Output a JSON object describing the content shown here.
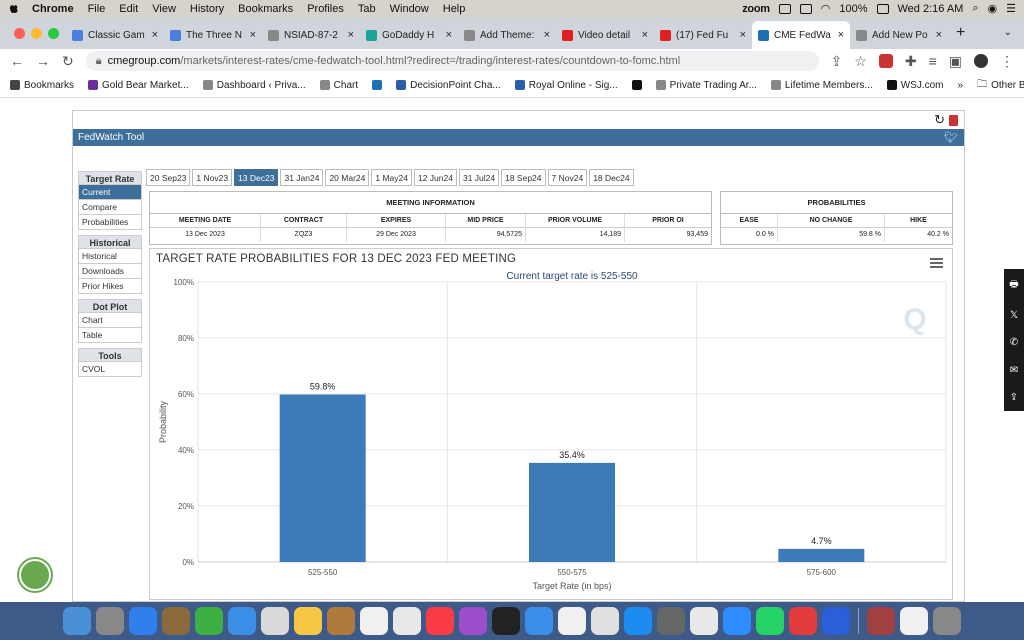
{
  "menubar": {
    "app": "Chrome",
    "items": [
      "File",
      "Edit",
      "View",
      "History",
      "Bookmarks",
      "Profiles",
      "Tab",
      "Window",
      "Help"
    ],
    "zoom_logo": "zoom",
    "battery": "100%",
    "datetime": "Wed 2:16 AM"
  },
  "browser": {
    "tabs": [
      {
        "label": "Classic Gam",
        "fav_color": "#4a7fe0"
      },
      {
        "label": "The Three N",
        "fav_color": "#4a7fe0"
      },
      {
        "label": "NSIAD-87-2",
        "fav_color": "#888888"
      },
      {
        "label": "GoDaddy H",
        "fav_color": "#1ba39c"
      },
      {
        "label": "Add Theme:",
        "fav_color": "#888888"
      },
      {
        "label": "Video detail",
        "fav_color": "#e02020"
      },
      {
        "label": "(17) Fed Fu",
        "fav_color": "#e02020"
      },
      {
        "label": "CME FedWa",
        "fav_color": "#1f6fb5",
        "active": true
      },
      {
        "label": "Add New Po",
        "fav_color": "#888888"
      }
    ],
    "tab_close": "×",
    "new_tab": "+",
    "url_host": "cmegroup.com",
    "url_path": "/markets/interest-rates/cme-fedwatch-tool.html?redirect=/trading/interest-rates/countdown-to-fomc.html",
    "bookmarks": [
      {
        "label": "Bookmarks",
        "color": "#444444"
      },
      {
        "label": "Gold Bear Market...",
        "color": "#6b2fa0"
      },
      {
        "label": "Dashboard ‹ Priva...",
        "color": "#888888"
      },
      {
        "label": "Chart",
        "color": "#888888"
      },
      {
        "label": "",
        "color": "#1f6fb5"
      },
      {
        "label": "DecisionPoint Cha...",
        "color": "#2a5ea8"
      },
      {
        "label": "Royal Online - Sig...",
        "color": "#2a5ea8"
      },
      {
        "label": "",
        "color": "#111111"
      },
      {
        "label": "Private Trading Ar...",
        "color": "#888888"
      },
      {
        "label": "Lifetime Members...",
        "color": "#888888"
      },
      {
        "label": "WSJ.com",
        "color": "#111111"
      }
    ],
    "bookmarks_more": "»",
    "other_bookmarks": "Other Bookmarks"
  },
  "fedwatch": {
    "title": "FedWatch Tool",
    "sidebar": [
      {
        "heading": "Target Rate",
        "items": [
          {
            "label": "Current",
            "selected": true
          },
          {
            "label": "Compare"
          },
          {
            "label": "Probabilities"
          }
        ]
      },
      {
        "heading": "Historical",
        "items": [
          {
            "label": "Historical"
          },
          {
            "label": "Downloads"
          },
          {
            "label": "Prior Hikes"
          }
        ]
      },
      {
        "heading": "Dot Plot",
        "items": [
          {
            "label": "Chart"
          },
          {
            "label": "Table"
          }
        ]
      },
      {
        "heading": "Tools",
        "items": [
          {
            "label": "CVOL"
          }
        ]
      }
    ],
    "meeting_tabs": [
      "20 Sep23",
      "1 Nov23",
      "13 Dec23",
      "31 Jan24",
      "20 Mar24",
      "1 May24",
      "12 Jun24",
      "31 Jul24",
      "18 Sep24",
      "7 Nov24",
      "18 Dec24"
    ],
    "active_meeting_tab": 2,
    "meeting_info": {
      "heading": "MEETING INFORMATION",
      "headers": [
        "MEETING DATE",
        "CONTRACT",
        "EXPIRES",
        "MID PRICE",
        "PRIOR VOLUME",
        "PRIOR OI"
      ],
      "values": [
        "13 Dec 2023",
        "ZQZ3",
        "29 Dec 2023",
        "94.5725",
        "14,189",
        "93,459"
      ]
    },
    "probabilities": {
      "heading": "PROBABILITIES",
      "headers": [
        "EASE",
        "NO CHANGE",
        "HIKE"
      ],
      "values": [
        "0.0 %",
        "59.8 %",
        "40.2 %"
      ]
    }
  },
  "chart_data": {
    "type": "bar",
    "title": "TARGET RATE PROBABILITIES FOR 13 DEC 2023 FED MEETING",
    "subtitle": "Current target rate is 525-550",
    "xlabel": "Target Rate (in bps)",
    "ylabel": "Probability",
    "categories": [
      "525-550",
      "550-575",
      "575-600"
    ],
    "values": [
      59.8,
      35.4,
      4.7
    ],
    "data_labels": [
      "59.8%",
      "35.4%",
      "4.7%"
    ],
    "yticks": [
      "0%",
      "20%",
      "40%",
      "60%",
      "80%",
      "100%"
    ],
    "ylim": [
      0,
      100
    ],
    "bar_color": "#3d7ab8",
    "grid": true,
    "legend": "none"
  },
  "sharebar": [
    "🖶",
    "𝕏",
    "✆",
    "✉",
    "⇪"
  ]
}
